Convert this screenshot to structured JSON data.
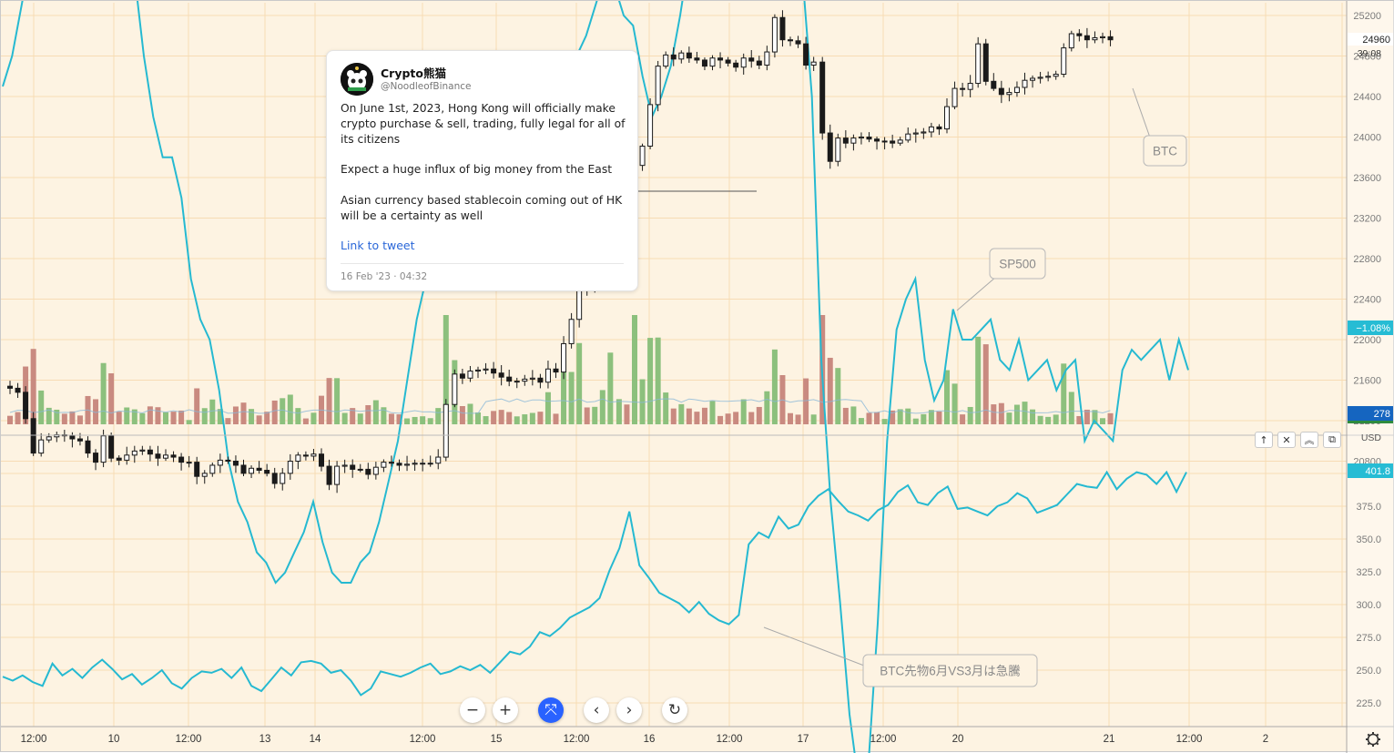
{
  "tweet": {
    "name": "Crypto熊猫",
    "handle": "@NoodleofBinance",
    "para1": "On June 1st, 2023, Hong Kong will officially make crypto purchase & sell, trading, fully legal for all of its citizens",
    "para2": "Expect a huge influx of big money from the East",
    "para3": "Asian currency based stablecoin coming out of HK will be a certainty as well",
    "link": "Link to tweet",
    "date": "16 Feb '23 · 04:32"
  },
  "top_axis": {
    "labels": [
      "25200",
      "24800",
      "24400",
      "24000",
      "23600",
      "23200",
      "22800",
      "22400",
      "22000",
      "21600",
      "21200",
      "20800"
    ],
    "price_badge": "24960",
    "countdown": "39:08",
    "sp500_badge": "−1.08%",
    "volume_badge": "278"
  },
  "bottom_axis": {
    "labels": [
      "375.0",
      "350.0",
      "325.0",
      "300.0",
      "275.0",
      "250.0",
      "225.0"
    ],
    "currency": "USD",
    "badge": "401.8"
  },
  "time_axis": {
    "labels": [
      "12:00",
      "10",
      "12:00",
      "13",
      "14",
      "12:00",
      "15",
      "12:00",
      "16",
      "12:00",
      "17",
      "12:00",
      "20",
      "21",
      "12:00",
      "2"
    ]
  },
  "annotations": {
    "btc": "BTC",
    "sp500": "SP500",
    "spread": "BTC先物6月VS3月は急騰"
  },
  "colors": {
    "background": "#fdf3e2",
    "grid": "#f7dcb4",
    "line": "#25b9d1",
    "up_candle": "#ffffff",
    "down_candle": "#1a1a1a",
    "vol_up": "#8cc07d",
    "vol_down": "#c98a80",
    "badge": "#26bcd4",
    "volume_badge": "#1565c0"
  },
  "toolbar": {
    "up_icon": "↑",
    "close_icon": "✕",
    "collapse_icon": "︽",
    "maximize_icon": "⧉"
  },
  "nav": {
    "zoom_out": "−",
    "zoom_in": "+",
    "reset_scale": "⤧",
    "scroll_left": "‹",
    "scroll_right": "›",
    "reset_chart": "↻"
  },
  "chart_data": [
    {
      "type": "candlestick",
      "x_labels": [
        "12:00",
        "10",
        "12:00",
        "13",
        "14",
        "12:00",
        "15",
        "12:00",
        "16",
        "12:00",
        "17",
        "12:00",
        "20",
        "21",
        "12:00"
      ],
      "ylim": [
        20800,
        25200
      ],
      "closes": [
        21520,
        21480,
        21220,
        20880,
        21010,
        21040,
        21060,
        21050,
        21020,
        21000,
        20880,
        20790,
        21050,
        20830,
        20810,
        20860,
        20900,
        20910,
        20870,
        20830,
        20860,
        20840,
        20790,
        20790,
        20650,
        20680,
        20760,
        20810,
        20800,
        20760,
        20680,
        20730,
        20710,
        20680,
        20580,
        20680,
        20800,
        20860,
        20850,
        20870,
        20750,
        20570,
        20750,
        20760,
        20720,
        20720,
        20670,
        20740,
        20790,
        20780,
        20760,
        20770,
        20780,
        20780,
        20780,
        20840,
        21360,
        21660,
        21620,
        21690,
        21700,
        21710,
        21670,
        21630,
        21590,
        21590,
        21610,
        21620,
        21580,
        21710,
        21680,
        21960,
        22200,
        22560,
        22510,
        22570,
        22710,
        23030,
        23120,
        23060,
        23720,
        23910,
        24320,
        24700,
        24810,
        24770,
        24830,
        24780,
        24760,
        24700,
        24780,
        24760,
        24730,
        24690,
        24780,
        24750,
        24710,
        24840,
        25180,
        24960,
        24950,
        24920,
        24710,
        24740,
        24040,
        23760,
        23990,
        23940,
        23990,
        24000,
        23980,
        23960,
        23960,
        23940,
        23970,
        24030,
        24040,
        24050,
        24100,
        24080,
        24300,
        24480,
        24470,
        24530,
        24920,
        24550,
        24480,
        24420,
        24440,
        24490,
        24560,
        24580,
        24590,
        24600,
        24620,
        24880,
        25020,
        25000,
        24960,
        24980,
        24990,
        24960
      ],
      "volume_note": "volume bars shown at bottom of top pane with moving-average line"
    },
    {
      "type": "line",
      "name": "SP500",
      "values": [
        2450,
        2480,
        2530,
        2580,
        2650,
        2720,
        2800,
        2850,
        2870,
        2880,
        2840,
        2760,
        2700,
        2640,
        2560,
        2480,
        2420,
        2380,
        2380,
        2340,
        2260,
        2220,
        2200,
        2150,
        2080,
        2040,
        2020,
        1990,
        1980,
        1960,
        1970,
        1990,
        2010,
        2040,
        2000,
        1970,
        1960,
        1960,
        1980,
        1990,
        2020,
        2060,
        2100,
        2160,
        2220,
        2260,
        2270,
        2280,
        2300,
        2320,
        2340,
        2320,
        2320,
        2380,
        2370,
        2420,
        2440,
        2440,
        2460,
        2430,
        2440,
        2480,
        2500,
        2530,
        2560,
        2550,
        2520,
        2510,
        2460,
        2420,
        2440,
        2470,
        2520,
        2580,
        2650,
        2720,
        2800,
        2850,
        2870,
        2820,
        2820,
        2840,
        2780,
        2720,
        2640,
        2560,
        2440,
        2180,
        2040,
        1940,
        1830,
        1760,
        1780,
        1920,
        2100,
        2210,
        2240,
        2260,
        2180,
        2140,
        2160,
        2230,
        2200,
        2200,
        2210,
        2220,
        2180,
        2170,
        2200,
        2160,
        2170,
        2180,
        2150,
        2170,
        2180,
        2100,
        2120,
        2110,
        2100,
        2170,
        2190,
        2180,
        2190,
        2200,
        2160,
        2200,
        2170
      ],
      "badge": "−1.08%"
    },
    {
      "type": "line",
      "name": "",
      "ylim": [
        215,
        405
      ],
      "values": [
        245,
        242,
        246,
        241,
        238,
        255,
        246,
        251,
        244,
        252,
        258,
        251,
        243,
        247,
        239,
        244,
        250,
        240,
        236,
        244,
        249,
        248,
        251,
        244,
        252,
        238,
        234,
        243,
        252,
        246,
        256,
        257,
        255,
        248,
        250,
        242,
        231,
        236,
        249,
        247,
        245,
        248,
        252,
        255,
        247,
        249,
        253,
        250,
        254,
        248,
        256,
        264,
        262,
        268,
        279,
        276,
        282,
        290,
        294,
        298,
        305,
        326,
        343,
        371,
        330,
        320,
        309,
        305,
        301,
        294,
        302,
        293,
        288,
        285,
        292,
        346,
        355,
        351,
        367,
        358,
        361,
        375,
        383,
        388,
        379,
        371,
        368,
        364,
        372,
        376,
        386,
        391,
        378,
        376,
        385,
        390,
        373,
        374,
        371,
        368,
        375,
        378,
        385,
        381,
        370,
        373,
        376,
        384,
        392,
        390,
        389,
        401,
        388,
        396,
        401,
        399,
        392,
        401,
        386,
        401
      ],
      "badge": "401.8"
    }
  ]
}
